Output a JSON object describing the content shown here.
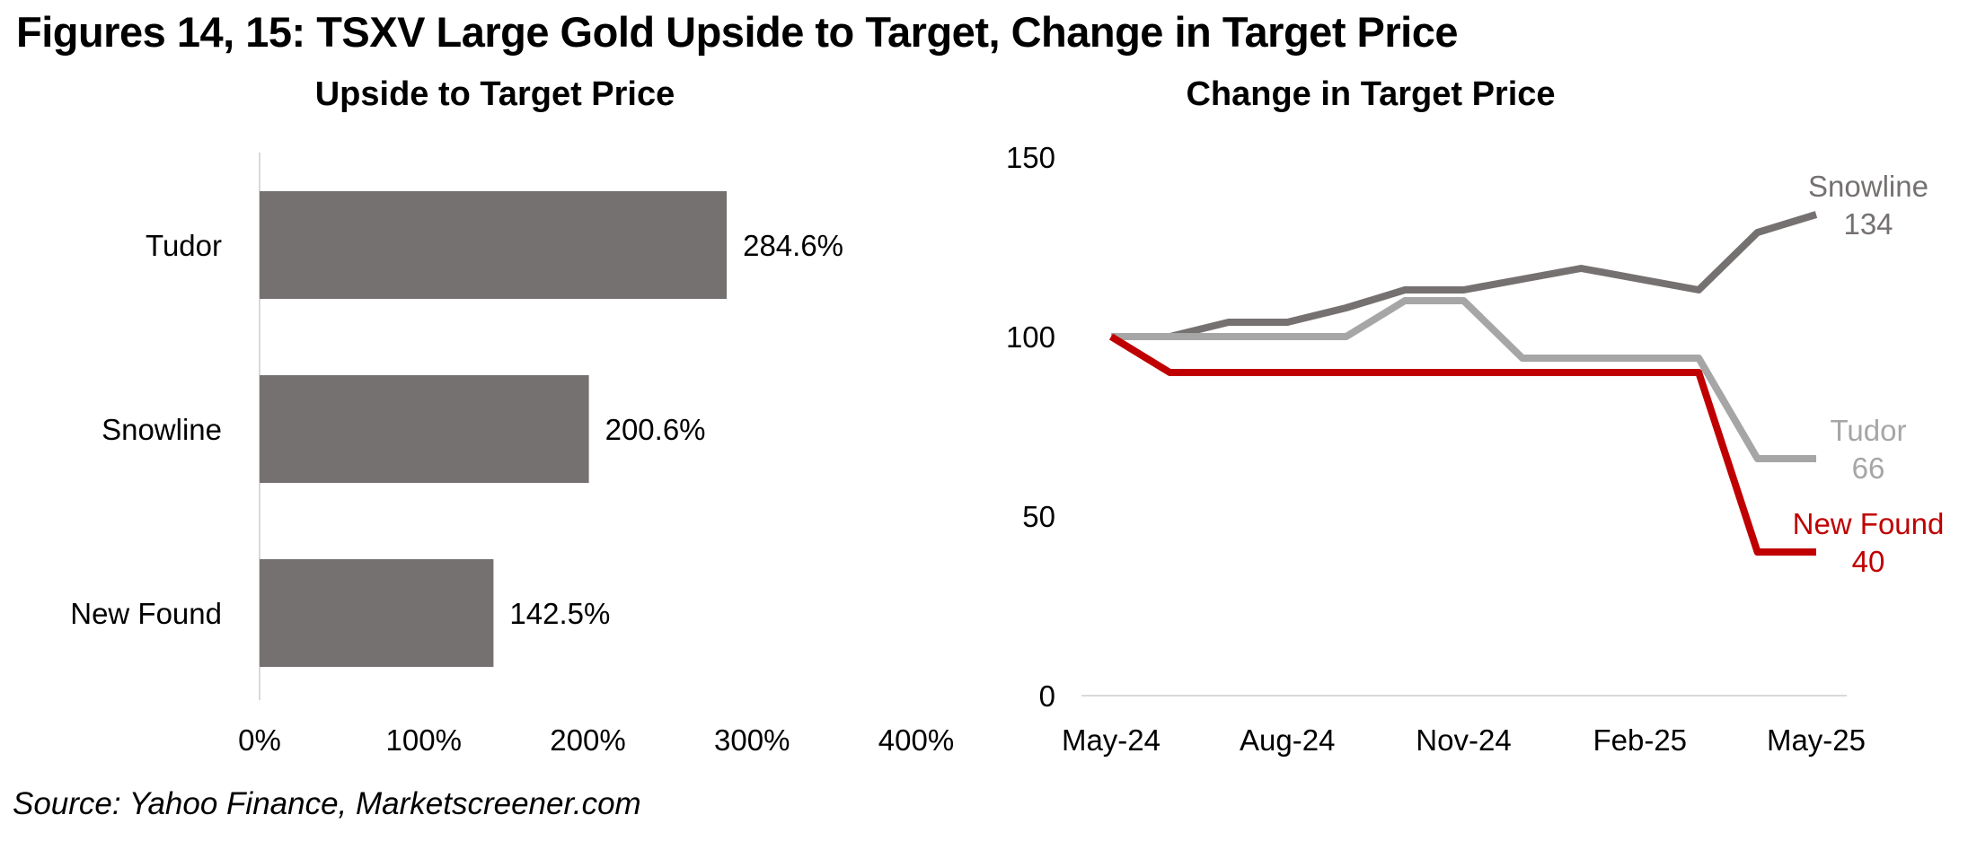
{
  "page": {
    "main_title": "Figures 14, 15: TSXV Large Gold Upside to Target, Change in Target Price",
    "source": "Source: Yahoo Finance, Marketscreener.com"
  },
  "colors": {
    "dark_gray": "#767171",
    "light_gray": "#a6a6a6",
    "red": "#c00000",
    "axis_line": "#d9d9d9",
    "text": "#000000"
  },
  "chart_data": [
    {
      "type": "bar",
      "orientation": "horizontal",
      "title": "Upside to Target Price",
      "categories": [
        "Tudor",
        "Snowline",
        "New Found"
      ],
      "values": [
        284.6,
        200.6,
        142.5
      ],
      "value_labels": [
        "284.6%",
        "200.6%",
        "142.5%"
      ],
      "bar_color": "#767171",
      "x_ticks": [
        {
          "label": "0%",
          "value": 0
        },
        {
          "label": "100%",
          "value": 100
        },
        {
          "label": "200%",
          "value": 200
        },
        {
          "label": "300%",
          "value": 300
        },
        {
          "label": "400%",
          "value": 400
        }
      ],
      "xlim": [
        0,
        400
      ],
      "grid": false
    },
    {
      "type": "line",
      "title": "Change in Target Price",
      "x": [
        "May-24",
        "Jun-24",
        "Jul-24",
        "Aug-24",
        "Sep-24",
        "Oct-24",
        "Nov-24",
        "Dec-24",
        "Jan-25",
        "Feb-25",
        "Mar-25",
        "Apr-25",
        "May-25"
      ],
      "x_ticks_shown": [
        {
          "label": "May-24",
          "month_index": 0
        },
        {
          "label": "Aug-24",
          "month_index": 3
        },
        {
          "label": "Nov-24",
          "month_index": 6
        },
        {
          "label": "Feb-25",
          "month_index": 9
        },
        {
          "label": "May-25",
          "month_index": 12
        }
      ],
      "y_ticks": [
        150,
        100,
        50,
        0
      ],
      "ylim": [
        0,
        150
      ],
      "series": [
        {
          "name": "Snowline",
          "color": "#767171",
          "end_label": "134",
          "values": [
            100,
            100,
            104,
            104,
            108,
            113,
            113,
            116,
            119,
            116,
            113,
            129,
            134
          ]
        },
        {
          "name": "Tudor",
          "color": "#a6a6a6",
          "end_label": "66",
          "values": [
            100,
            100,
            100,
            100,
            100,
            110,
            110,
            94,
            94,
            94,
            94,
            66,
            66
          ]
        },
        {
          "name": "New Found",
          "color": "#c00000",
          "end_label": "40",
          "values": [
            100,
            90,
            90,
            90,
            90,
            90,
            90,
            90,
            90,
            90,
            90,
            40,
            40
          ]
        }
      ],
      "grid": false,
      "legend": "end-of-line labels"
    }
  ]
}
